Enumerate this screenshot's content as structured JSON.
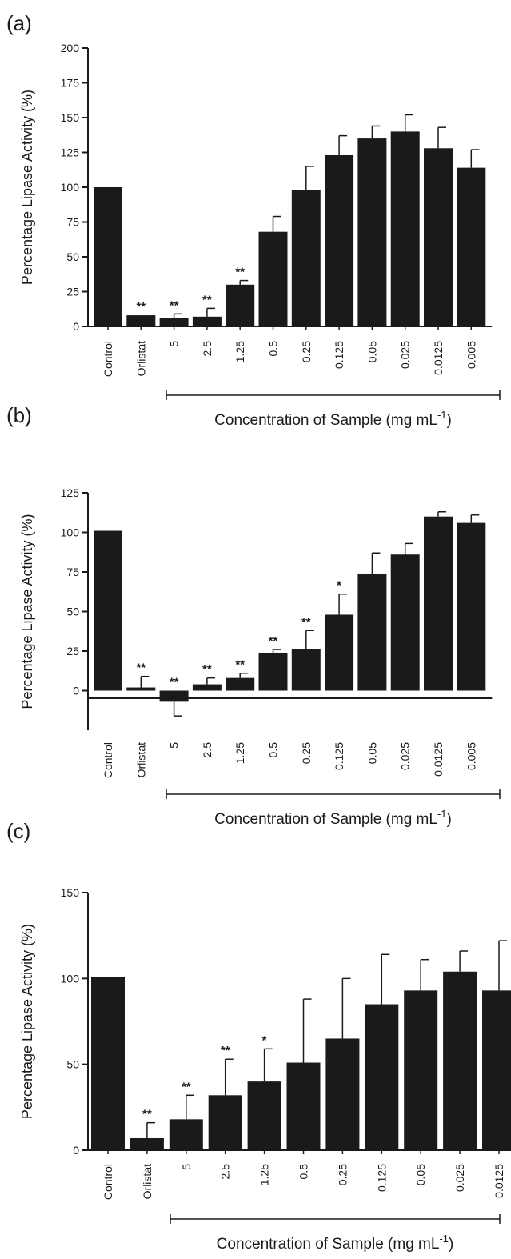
{
  "chart_data": [
    {
      "type": "bar",
      "panel_label": "(a)",
      "ylabel": "Percentage Lipase Activity (%)",
      "xlabel": "Concentration of Sample (mg mL",
      "xlabel_superscript": "-1",
      "xlabel_suffix": ")",
      "ylim": [
        0,
        200
      ],
      "yticks": [
        0,
        25,
        50,
        75,
        100,
        125,
        150,
        175,
        200
      ],
      "grid": false,
      "categories": [
        "Control",
        "Orlistat",
        "5",
        "2.5",
        "1.25",
        "0.5",
        "0.25",
        "0.125",
        "0.05",
        "0.025",
        "0.0125",
        "0.005"
      ],
      "values": [
        100,
        8,
        6,
        7,
        30,
        68,
        98,
        123,
        135,
        140,
        128,
        114
      ],
      "error": [
        0,
        0,
        3,
        6,
        3,
        11,
        17,
        14,
        9,
        12,
        15,
        13
      ],
      "significance": [
        "",
        "**",
        "**",
        "**",
        "**",
        "",
        "",
        "",
        "",
        "",
        "",
        ""
      ],
      "bar_color": "#1a1a1a"
    },
    {
      "type": "bar",
      "panel_label": "(b)",
      "ylabel": "Percentage Lipase Activity (%)",
      "xlabel": "Concentration of Sample (mg mL",
      "xlabel_superscript": "-1",
      "xlabel_suffix": ")",
      "ylim": [
        -25,
        125
      ],
      "yticks": [
        0,
        25,
        50,
        75,
        100,
        125
      ],
      "grid": false,
      "categories": [
        "Control",
        "Orlistat",
        "5",
        "2.5",
        "1.25",
        "0.5",
        "0.25",
        "0.125",
        "0.05",
        "0.025",
        "0.0125",
        "0.005"
      ],
      "values": [
        101,
        2,
        -7,
        4,
        8,
        24,
        26,
        48,
        74,
        86,
        110,
        106
      ],
      "error": [
        0,
        7,
        9,
        4,
        3,
        2,
        12,
        13,
        13,
        7,
        3,
        5
      ],
      "significance": [
        "",
        "**",
        "**",
        "**",
        "**",
        "**",
        "**",
        "*",
        "",
        "",
        "",
        ""
      ],
      "bar_color": "#1a1a1a"
    },
    {
      "type": "bar",
      "panel_label": "(c)",
      "ylabel": "Percentage Lipase Activity (%)",
      "xlabel": "Concentration of Sample (mg mL",
      "xlabel_superscript": "-1",
      "xlabel_suffix": ")",
      "ylim": [
        0,
        150
      ],
      "yticks": [
        0,
        50,
        100,
        150
      ],
      "grid": false,
      "categories": [
        "Control",
        "Orlistat",
        "5",
        "2.5",
        "1.25",
        "0.5",
        "0.25",
        "0.125",
        "0.05",
        "0.025",
        "0.0125"
      ],
      "values": [
        101,
        7,
        18,
        32,
        40,
        51,
        65,
        85,
        93,
        104,
        93
      ],
      "error": [
        0,
        9,
        14,
        21,
        19,
        37,
        35,
        29,
        18,
        12,
        29
      ],
      "significance": [
        "",
        "**",
        "**",
        "**",
        "*",
        "",
        "",
        "",
        "",
        "",
        ""
      ],
      "bar_color": "#1a1a1a"
    }
  ]
}
